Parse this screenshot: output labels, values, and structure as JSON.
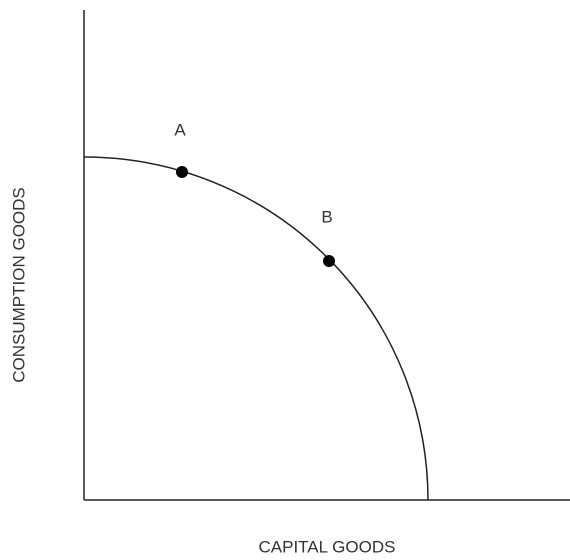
{
  "axes": {
    "x_label": "CAPITAL GOODS",
    "y_label": "CONSUMPTION GOODS"
  },
  "points": [
    {
      "label": "A"
    },
    {
      "label": "B"
    }
  ]
}
